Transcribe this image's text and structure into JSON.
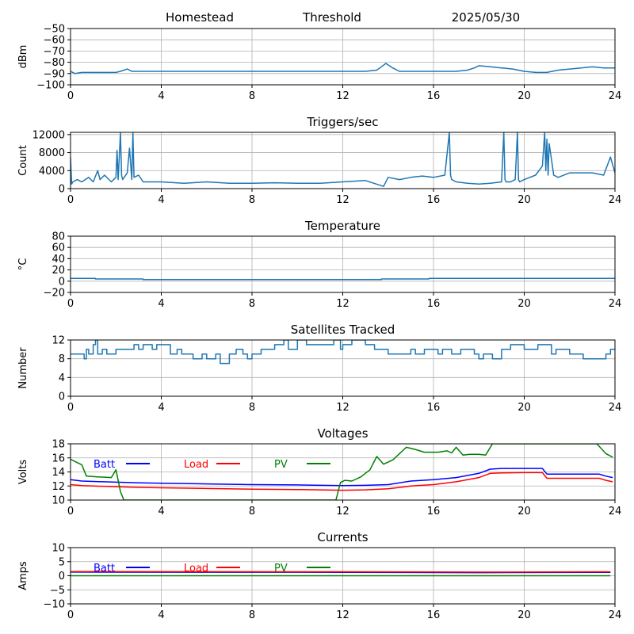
{
  "header": {
    "site": "Homestead",
    "panel_title": "Threshold",
    "date": "2025/05/30"
  },
  "chart_data": [
    {
      "type": "line",
      "title": "",
      "ylabel": "dBm",
      "xlim": [
        0,
        24
      ],
      "ylim": [
        -100,
        -50
      ],
      "xticks": [
        0,
        4,
        8,
        12,
        16,
        20,
        24
      ],
      "yticks": [
        -100,
        -90,
        -80,
        -70,
        -60,
        -50
      ],
      "grid": true,
      "series": [
        {
          "color": "#1f77b4",
          "x": [
            0,
            0.2,
            0.5,
            1,
            1.5,
            2,
            2.2,
            2.5,
            2.7,
            3,
            3.5,
            4,
            5,
            6,
            7,
            8,
            9,
            10,
            11,
            12,
            13,
            13.5,
            13.7,
            13.9,
            14.2,
            14.5,
            15,
            16,
            16.5,
            17,
            17.5,
            17.8,
            18,
            18.5,
            19,
            19.5,
            20,
            20.5,
            21,
            21.5,
            22,
            22.5,
            23,
            23.5,
            24
          ],
          "y": [
            -88,
            -90,
            -89,
            -89,
            -89,
            -89,
            -88,
            -86,
            -88,
            -88,
            -88,
            -88,
            -88,
            -88,
            -88,
            -88,
            -88,
            -88,
            -88,
            -88,
            -88,
            -87,
            -84,
            -81,
            -85,
            -88,
            -88,
            -88,
            -88,
            -88,
            -87,
            -85,
            -83,
            -84,
            -85,
            -86,
            -88,
            -89,
            -89,
            -87,
            -86,
            -85,
            -84,
            -85,
            -85
          ]
        }
      ]
    },
    {
      "type": "line",
      "title": "Triggers/sec",
      "ylabel": "Count",
      "xlim": [
        0,
        24
      ],
      "ylim": [
        0,
        12500
      ],
      "xticks": [
        0,
        4,
        8,
        12,
        16,
        20,
        24
      ],
      "yticks": [
        0,
        4000,
        8000,
        12000
      ],
      "grid": true,
      "series": [
        {
          "color": "#1f77b4",
          "x": [
            0,
            0.05,
            0.1,
            0.3,
            0.5,
            0.8,
            1,
            1.2,
            1.3,
            1.5,
            1.8,
            2,
            2.05,
            2.1,
            2.2,
            2.25,
            2.3,
            2.5,
            2.6,
            2.7,
            2.75,
            2.8,
            3,
            3.2,
            3.5,
            4,
            5,
            6,
            7,
            8,
            9,
            10,
            11,
            12,
            13,
            13.8,
            14,
            14.5,
            15,
            15.5,
            16,
            16.5,
            16.7,
            16.75,
            16.8,
            17,
            17.5,
            18,
            18.5,
            19,
            19.1,
            19.15,
            19.2,
            19.4,
            19.6,
            19.7,
            19.75,
            19.8,
            20,
            20.5,
            20.8,
            20.9,
            20.95,
            21,
            21.05,
            21.1,
            21.3,
            21.5,
            22,
            22.5,
            23,
            23.5,
            23.8,
            24
          ],
          "y": [
            7000,
            1000,
            1500,
            2000,
            1500,
            2500,
            1500,
            4000,
            2000,
            3000,
            1500,
            2500,
            8500,
            2000,
            12500,
            3000,
            2000,
            3500,
            9000,
            2000,
            12500,
            2500,
            3000,
            1500,
            1500,
            1500,
            1200,
            1500,
            1200,
            1200,
            1300,
            1200,
            1200,
            1500,
            1800,
            500,
            2500,
            2000,
            2500,
            2800,
            2500,
            3000,
            12500,
            3000,
            2000,
            1500,
            1200,
            1000,
            1200,
            1500,
            12500,
            2000,
            1500,
            1500,
            2000,
            12500,
            2000,
            1500,
            2000,
            3000,
            5000,
            12500,
            4000,
            11000,
            3000,
            10000,
            3000,
            2500,
            3500,
            3500,
            3500,
            3000,
            7000,
            3500
          ]
        }
      ]
    },
    {
      "type": "line",
      "title": "Temperature",
      "ylabel": "°C",
      "xlim": [
        0,
        24
      ],
      "ylim": [
        -20,
        80
      ],
      "xticks": [
        0,
        4,
        8,
        12,
        16,
        20,
        24
      ],
      "yticks": [
        -20,
        0,
        20,
        40,
        60,
        80
      ],
      "grid": true,
      "series": [
        {
          "color": "#1f77b4",
          "x": [
            0,
            1.1,
            1.1,
            3.2,
            3.2,
            13.7,
            13.7,
            15.8,
            15.8,
            24
          ],
          "y": [
            5,
            5,
            4,
            4,
            3,
            3,
            4,
            4,
            5,
            5
          ]
        }
      ]
    },
    {
      "type": "line",
      "title": "Satellites Tracked",
      "ylabel": "Number",
      "xlim": [
        0,
        24
      ],
      "ylim": [
        0,
        12
      ],
      "xticks": [
        0,
        4,
        8,
        12,
        16,
        20,
        24
      ],
      "yticks": [
        0,
        4,
        8,
        12
      ],
      "grid": true,
      "series": [
        {
          "color": "#1f77b4",
          "x": [
            0,
            0.6,
            0.6,
            0.7,
            0.7,
            0.8,
            0.8,
            1.0,
            1.0,
            1.1,
            1.1,
            1.2,
            1.2,
            1.4,
            1.4,
            1.6,
            1.6,
            2.0,
            2.0,
            2.5,
            2.5,
            2.8,
            2.8,
            3.0,
            3.0,
            3.2,
            3.2,
            3.6,
            3.6,
            3.8,
            3.8,
            4.4,
            4.4,
            4.7,
            4.7,
            4.9,
            4.9,
            5.4,
            5.4,
            5.8,
            5.8,
            6.0,
            6.0,
            6.4,
            6.4,
            6.6,
            6.6,
            7.0,
            7.0,
            7.3,
            7.3,
            7.6,
            7.6,
            7.8,
            7.8,
            8.0,
            8.0,
            8.4,
            8.4,
            9.0,
            9.0,
            9.4,
            9.4,
            9.6,
            9.6,
            10.0,
            10.0,
            10.4,
            10.4,
            11.0,
            11.0,
            11.6,
            11.6,
            11.9,
            11.9,
            12.0,
            12.0,
            12.4,
            12.4,
            13.0,
            13.0,
            13.4,
            13.4,
            14.0,
            14.0,
            15.0,
            15.0,
            15.2,
            15.2,
            15.6,
            15.6,
            16.2,
            16.2,
            16.4,
            16.4,
            16.8,
            16.8,
            17.2,
            17.2,
            17.8,
            17.8,
            18.0,
            18.0,
            18.2,
            18.2,
            18.6,
            18.6,
            19.0,
            19.0,
            19.4,
            19.4,
            20.0,
            20.0,
            20.6,
            20.6,
            21.2,
            21.2,
            21.4,
            21.4,
            22.0,
            22.0,
            22.6,
            22.6,
            23.6,
            23.6,
            23.8,
            23.8,
            24
          ],
          "y": [
            9,
            9,
            8,
            8,
            10,
            10,
            9,
            9,
            11,
            11,
            12,
            12,
            9,
            9,
            10,
            10,
            9,
            9,
            10,
            10,
            10,
            10,
            11,
            11,
            10,
            10,
            11,
            11,
            10,
            10,
            11,
            11,
            9,
            9,
            10,
            10,
            9,
            9,
            8,
            8,
            9,
            9,
            8,
            8,
            9,
            9,
            7,
            7,
            9,
            9,
            10,
            10,
            9,
            9,
            8,
            8,
            9,
            9,
            10,
            10,
            11,
            11,
            12,
            12,
            10,
            10,
            12,
            12,
            11,
            11,
            11,
            11,
            12,
            12,
            10,
            10,
            11,
            11,
            12,
            12,
            11,
            11,
            10,
            10,
            9,
            9,
            10,
            10,
            9,
            9,
            10,
            10,
            9,
            9,
            10,
            10,
            9,
            9,
            10,
            10,
            9,
            9,
            8,
            8,
            9,
            9,
            8,
            8,
            10,
            10,
            11,
            11,
            10,
            10,
            11,
            11,
            9,
            9,
            10,
            10,
            9,
            9,
            8,
            8,
            9,
            9,
            10,
            10
          ]
        }
      ]
    },
    {
      "type": "line",
      "title": "Voltages",
      "ylabel": "Volts",
      "xlim": [
        0,
        24
      ],
      "ylim": [
        10,
        18
      ],
      "xticks": [
        0,
        4,
        8,
        12,
        16,
        20,
        24
      ],
      "yticks": [
        10,
        12,
        14,
        16,
        18
      ],
      "grid": true,
      "legend": "top-left",
      "series": [
        {
          "name": "Batt",
          "color": "#0000ff",
          "x": [
            0,
            0.5,
            1,
            2,
            3,
            4,
            6,
            8,
            10,
            12,
            13,
            14,
            15,
            16,
            17,
            18,
            18.5,
            19,
            20,
            20.8,
            21,
            22,
            23.3,
            23.6,
            23.9
          ],
          "y": [
            12.9,
            12.7,
            12.65,
            12.55,
            12.45,
            12.4,
            12.3,
            12.2,
            12.15,
            12.05,
            12.1,
            12.2,
            12.7,
            12.9,
            13.2,
            13.8,
            14.4,
            14.5,
            14.5,
            14.5,
            13.7,
            13.7,
            13.7,
            13.4,
            13.2
          ]
        },
        {
          "name": "Load",
          "color": "#ff0000",
          "x": [
            0,
            0.5,
            1,
            2,
            3,
            4,
            6,
            8,
            10,
            12,
            13,
            14,
            15,
            16,
            17,
            18,
            18.5,
            19,
            20,
            20.8,
            21,
            22,
            23.3,
            23.6,
            23.9
          ],
          "y": [
            12.2,
            12.05,
            12.0,
            11.9,
            11.8,
            11.75,
            11.65,
            11.55,
            11.5,
            11.4,
            11.45,
            11.6,
            12.0,
            12.2,
            12.6,
            13.2,
            13.8,
            13.85,
            13.9,
            13.9,
            13.1,
            13.1,
            13.1,
            12.8,
            12.6
          ]
        },
        {
          "name": "PV",
          "color": "#008000",
          "x": [
            0,
            0.5,
            0.7,
            1.2,
            1.8,
            2.0,
            2.2,
            2.35,
            11.7,
            11.9,
            12.1,
            12.4,
            12.8,
            13.2,
            13.5,
            13.8,
            14.2,
            14.8,
            15.2,
            15.6,
            16.2,
            16.6,
            16.8,
            17.0,
            17.3,
            17.6,
            18.0,
            18.3,
            18.6,
            23.2,
            23.6,
            23.9
          ],
          "y": [
            15.8,
            15.0,
            13.4,
            13.3,
            13.2,
            14.3,
            11.2,
            10,
            10,
            12.5,
            12.8,
            12.7,
            13.3,
            14.3,
            16.2,
            15.1,
            15.7,
            17.5,
            17.2,
            16.8,
            16.8,
            17.0,
            16.7,
            17.5,
            16.4,
            16.5,
            16.5,
            16.4,
            18.0,
            18.0,
            16.6,
            16.1
          ]
        }
      ]
    },
    {
      "type": "line",
      "title": "Currents",
      "ylabel": "Amps",
      "xlim": [
        0,
        24
      ],
      "ylim": [
        -10,
        10
      ],
      "xticks": [
        0,
        4,
        8,
        12,
        16,
        20,
        24
      ],
      "yticks": [
        -10,
        -5,
        0,
        5,
        10
      ],
      "grid": true,
      "legend": "top-left",
      "series": [
        {
          "name": "Batt",
          "color": "#0000ff",
          "x": [
            0,
            6,
            12,
            18,
            23.8
          ],
          "y": [
            1.3,
            1.25,
            1.2,
            1.1,
            1.2
          ]
        },
        {
          "name": "Load",
          "color": "#ff0000",
          "x": [
            0,
            6,
            12,
            18,
            23.8
          ],
          "y": [
            1.5,
            1.45,
            1.4,
            1.3,
            1.4
          ]
        },
        {
          "name": "PV",
          "color": "#008000",
          "x": [
            0,
            6,
            12,
            18,
            23.8
          ],
          "y": [
            0,
            0,
            0,
            0,
            0
          ]
        }
      ]
    }
  ]
}
